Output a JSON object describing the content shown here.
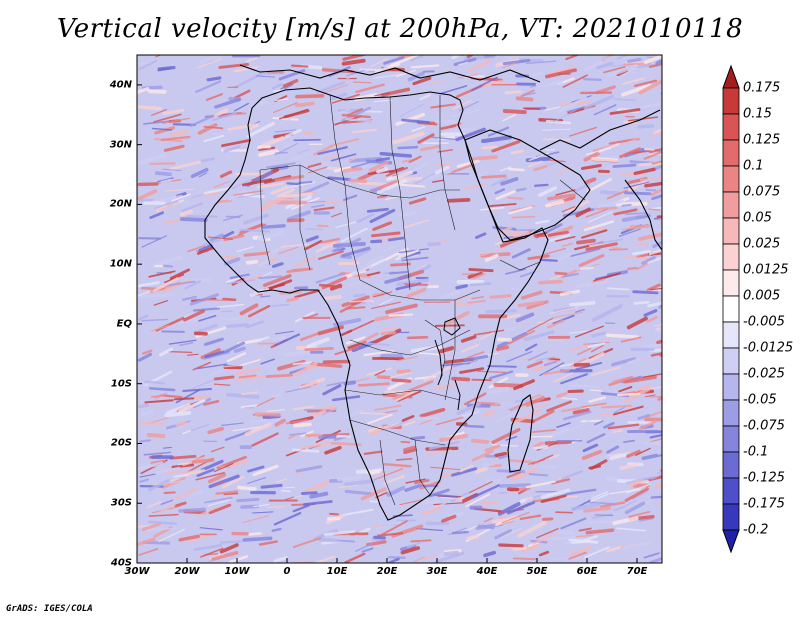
{
  "title": "Vertical velocity [m/s] at 200hPa, VT: 2021010118",
  "footer": "GrADS: IGES/COLA",
  "map": {
    "lat_labels": [
      "40N",
      "30N",
      "20N",
      "10N",
      "EQ",
      "10S",
      "20S",
      "30S",
      "40S"
    ],
    "lon_labels": [
      "30W",
      "20W",
      "10W",
      "0",
      "10E",
      "20E",
      "30E",
      "40E",
      "50E",
      "60E",
      "70E"
    ],
    "lat_range": [
      -40,
      45
    ],
    "lon_range": [
      -30,
      75
    ]
  },
  "colorbar": {
    "levels": [
      "0.175",
      "0.15",
      "0.125",
      "0.1",
      "0.075",
      "0.05",
      "0.025",
      "0.0125",
      "0.005",
      "-0.005",
      "-0.0125",
      "-0.025",
      "-0.05",
      "-0.075",
      "-0.1",
      "-0.125",
      "-0.175",
      "-0.2"
    ],
    "colors": [
      "#a51d1d",
      "#c83a3a",
      "#d95555",
      "#e26b6b",
      "#eb8585",
      "#f19d9d",
      "#f6b8b8",
      "#fad2d2",
      "#fdeaea",
      "#ffffff",
      "#e6e6fb",
      "#cfcff5",
      "#b6b6ee",
      "#9d9de6",
      "#8585dd",
      "#6b6bd4",
      "#4f4fc9",
      "#3838bd",
      "#2020a8"
    ]
  }
}
